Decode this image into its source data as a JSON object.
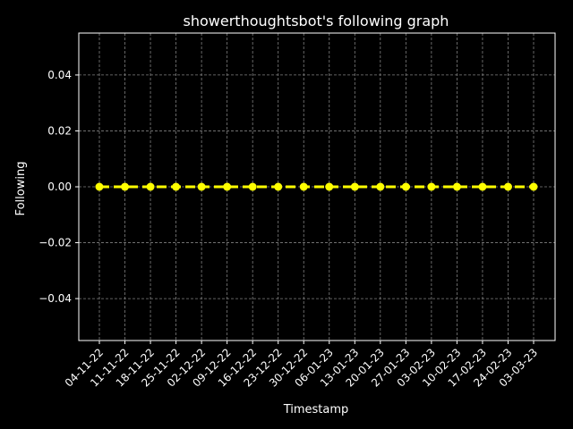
{
  "chart_data": {
    "type": "line",
    "title": "showerthoughtsbot's following graph",
    "xlabel": "Timestamp",
    "ylabel": "Following",
    "categories": [
      "04-11-22",
      "11-11-22",
      "18-11-22",
      "25-11-22",
      "02-12-22",
      "09-12-22",
      "16-12-22",
      "23-12-22",
      "30-12-22",
      "06-01-23",
      "13-01-23",
      "20-01-23",
      "27-01-23",
      "03-02-23",
      "10-02-23",
      "17-02-23",
      "24-02-23",
      "03-03-23"
    ],
    "series": [
      {
        "values": [
          0,
          0,
          0,
          0,
          0,
          0,
          0,
          0,
          0,
          0,
          0,
          0,
          0,
          0,
          0,
          0,
          0,
          0
        ]
      }
    ],
    "ylim": [
      -0.055,
      0.055
    ],
    "yticks": [
      -0.04,
      -0.02,
      0.0,
      0.02,
      0.04
    ],
    "ytick_labels": [
      "−0.04",
      "−0.02",
      "0.00",
      "0.02",
      "0.04"
    ],
    "grid": true,
    "colors": {
      "background": "#000000",
      "line": "#ffff00",
      "grid": "#808080",
      "axes": "#ffffff"
    }
  }
}
